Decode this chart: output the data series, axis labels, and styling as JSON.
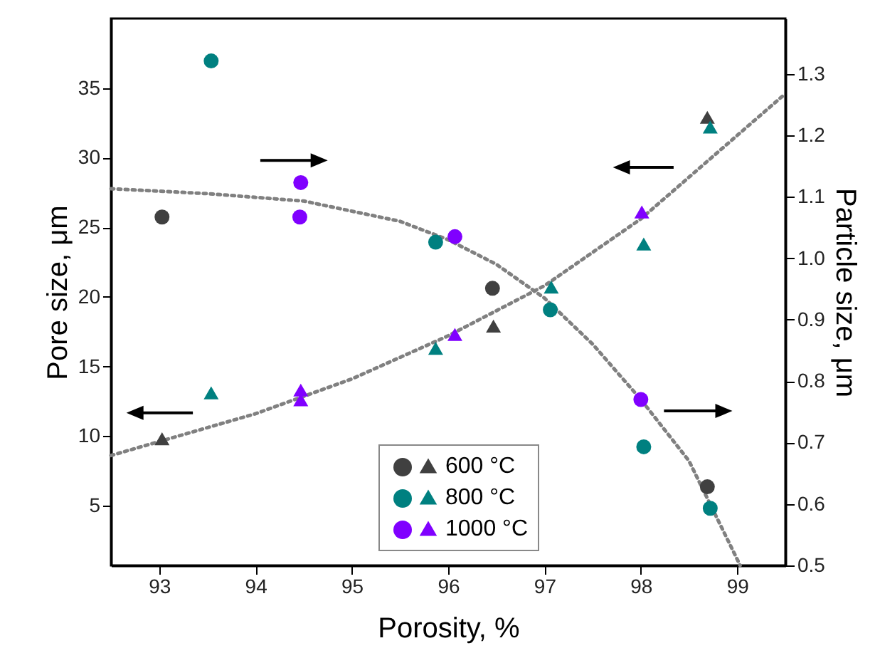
{
  "chart_data": {
    "type": "scatter",
    "xlabel": "Porosity, %",
    "ylabel": "Pore size, μm",
    "y2label": "Particle size, μm",
    "xlim": [
      92.5,
      99.5
    ],
    "xticks": [
      93,
      94,
      95,
      96,
      97,
      98,
      99
    ],
    "ylim": [
      0.7,
      40
    ],
    "yticks": [
      5,
      10,
      15,
      20,
      25,
      30,
      35
    ],
    "y2lim": [
      0.5,
      1.39
    ],
    "y2ticks": [
      0.5,
      0.6,
      0.7,
      0.8,
      0.9,
      {
        "value": 1.0,
        "label": "1.0"
      },
      1.1,
      1.2,
      1.3
    ],
    "legend": "bottom",
    "grid": false,
    "series": [
      {
        "name": "600 °C",
        "marker": "triangle",
        "color": "#404040",
        "x": [
          93.03,
          96.47,
          98.69
        ],
        "values": [
          9.8,
          17.9,
          32.9
        ]
      },
      {
        "name": "800 °C",
        "marker": "triangle",
        "color": "#008080",
        "x": [
          93.54,
          95.87,
          97.07,
          98.03,
          98.72
        ],
        "values": [
          13.1,
          16.3,
          20.7,
          23.8,
          32.2
        ]
      },
      {
        "name": "1000 °C",
        "marker": "triangle",
        "color": "#8000ff",
        "x": [
          94.47,
          94.47,
          96.07,
          98.01
        ],
        "values": [
          12.6,
          13.3,
          17.3,
          26.1
        ]
      },
      {
        "marker": "circle",
        "axis": "y2",
        "color": "#404040",
        "x": [
          93.03,
          96.46,
          98.69
        ],
        "values": [
          1.067,
          0.951,
          0.628
        ]
      },
      {
        "marker": "circle",
        "axis": "y2",
        "color": "#008080",
        "x": [
          93.54,
          95.87,
          97.06,
          98.03,
          98.72
        ],
        "values": [
          1.321,
          1.026,
          0.916,
          0.693,
          0.593
        ]
      },
      {
        "marker": "circle",
        "axis": "y2",
        "color": "#8000ff",
        "x": [
          94.47,
          94.46,
          96.07,
          98.0
        ],
        "values": [
          1.123,
          1.067,
          1.035,
          0.77
        ]
      },
      {
        "type": "line",
        "line_style": "dotted",
        "marker": "none",
        "color": "#808080",
        "x": [
          92.5,
          93,
          94,
          95,
          96,
          97,
          98,
          99,
          99.5
        ],
        "values": [
          8.6,
          9.6,
          11.6,
          14.1,
          17.2,
          20.8,
          25.6,
          31.6,
          34.6
        ]
      },
      {
        "type": "line",
        "line_style": "dotted",
        "marker": "none",
        "axis": "y2",
        "color": "#808080",
        "x": [
          92.5,
          93.5,
          94.5,
          95.5,
          96,
          96.5,
          97,
          97.5,
          98,
          98.5,
          99,
          99.03
        ],
        "values": [
          1.113,
          1.105,
          1.093,
          1.06,
          1.03,
          0.99,
          0.935,
          0.86,
          0.77,
          0.67,
          0.51,
          0.5
        ]
      }
    ]
  }
}
